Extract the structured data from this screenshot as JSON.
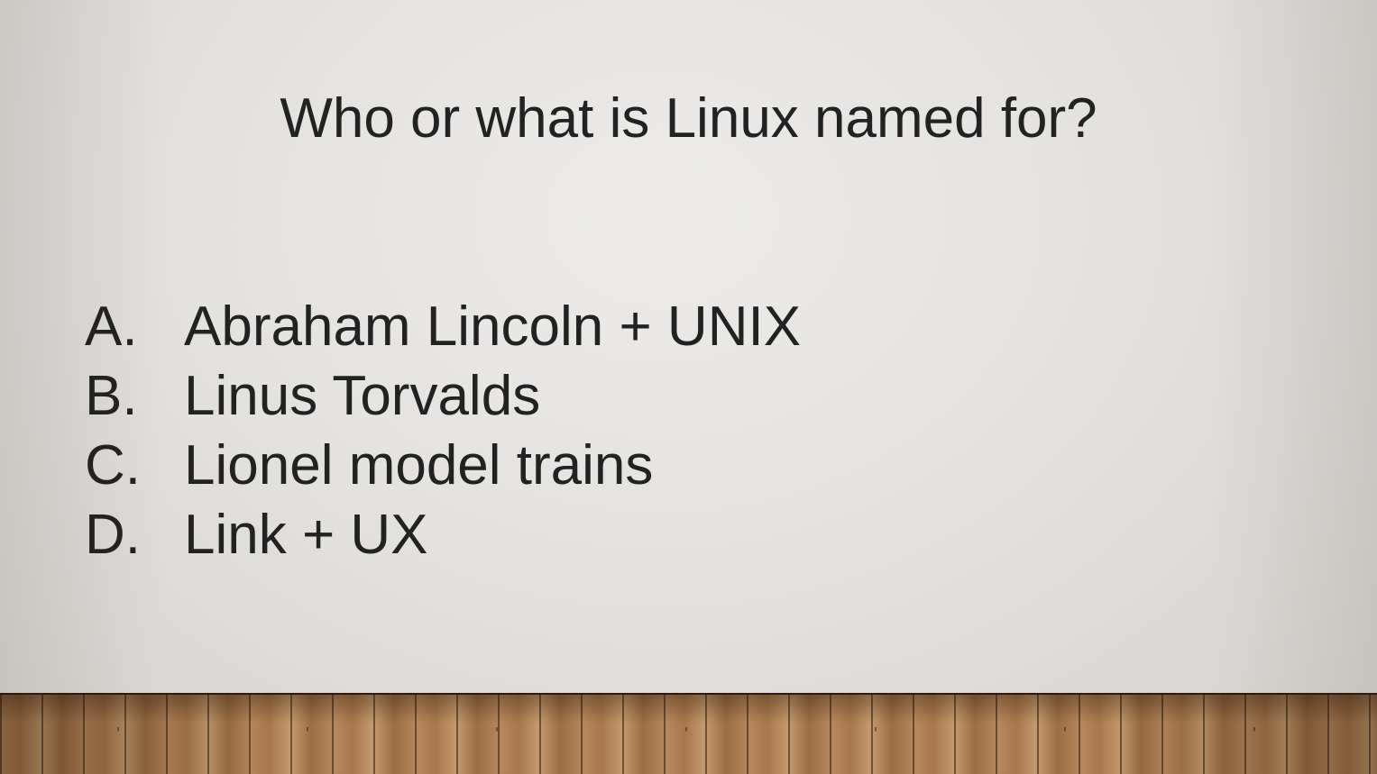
{
  "slide": {
    "title": "Who or what is Linux named for?",
    "answers": [
      {
        "letter": "A.",
        "text": "Abraham Lincoln + UNIX"
      },
      {
        "letter": "B.",
        "text": "Linus Torvalds"
      },
      {
        "letter": "C.",
        "text": "Lionel model trains"
      },
      {
        "letter": "D.",
        "text": "Link + UX"
      }
    ]
  },
  "colors": {
    "text": "#222222",
    "wall": "#e6e4e1",
    "floor": "#b08356"
  }
}
